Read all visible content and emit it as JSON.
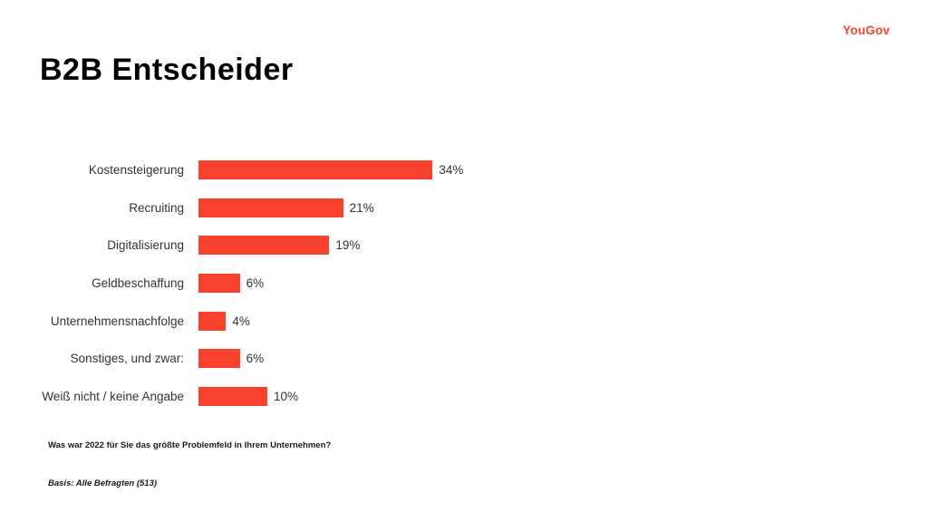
{
  "header": {
    "logo": "YouGov",
    "title": "B2B Entscheider"
  },
  "chart_data": {
    "type": "bar",
    "orientation": "horizontal",
    "title": "B2B Entscheider",
    "categories": [
      "Kostensteigerung",
      "Recruiting",
      "Digitalisierung",
      "Geldbeschaffung",
      "Unternehmensnachfolge",
      "Sonstiges, und zwar:",
      "Weiß nicht / keine Angabe"
    ],
    "values": [
      34,
      21,
      19,
      6,
      4,
      6,
      10
    ],
    "value_labels": [
      "34%",
      "21%",
      "19%",
      "6%",
      "4%",
      "6%",
      "10%"
    ],
    "unit": "%",
    "xlim": [
      0,
      40
    ],
    "grid": false,
    "legend": false,
    "bar_color": "#f9422e"
  },
  "footer": {
    "question": "Was war 2022 für Sie das größte Problemfeld in Ihrem Unternehmen?",
    "basis": "Basis: Alle Befragten (513)"
  },
  "colors": {
    "accent": "#f9422e",
    "title_text": "#000000",
    "label_text": "#333333",
    "background": "#ffffff"
  }
}
